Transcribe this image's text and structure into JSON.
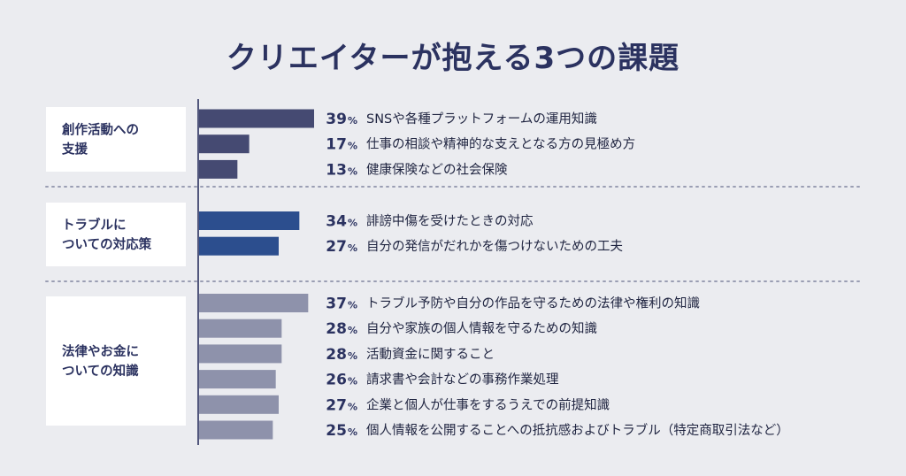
{
  "chart_data": {
    "type": "bar",
    "title": "クリエイターが抱える3つの課題",
    "unit": "%",
    "xlim": [
      0,
      40
    ],
    "colors": {
      "group1": "#454a72",
      "group2": "#2c4e8e",
      "group3": "#8e92ab",
      "title": "#2b3260",
      "background": "#ebecf0"
    },
    "groups": [
      {
        "label_lines": [
          "創作活動への",
          "支援"
        ],
        "items": [
          {
            "label": "SNSや各種プラットフォームの運用知識",
            "value": 39
          },
          {
            "label": "仕事の相談や精神的な支えとなる方の見極め方",
            "value": 17
          },
          {
            "label": "健康保険などの社会保険",
            "value": 13
          }
        ]
      },
      {
        "label_lines": [
          "トラブルに",
          "ついての対応策"
        ],
        "items": [
          {
            "label": "誹謗中傷を受けたときの対応",
            "value": 34
          },
          {
            "label": "自分の発信がだれかを傷つけないための工夫",
            "value": 27
          }
        ]
      },
      {
        "label_lines": [
          "法律やお金に",
          "ついての知識"
        ],
        "items": [
          {
            "label": "トラブル予防や自分の作品を守るための法律や権利の知識",
            "value": 37
          },
          {
            "label": "自分や家族の個人情報を守るための知識",
            "value": 28
          },
          {
            "label": "活動資金に関すること",
            "value": 28
          },
          {
            "label": "請求書や会計などの事務作業処理",
            "value": 26
          },
          {
            "label": "企業と個人が仕事をするうえでの前提知識",
            "value": 27
          },
          {
            "label": "個人情報を公開することへの抵抗感およびトラブル（特定商取引法など）",
            "value": 25
          }
        ]
      }
    ]
  }
}
